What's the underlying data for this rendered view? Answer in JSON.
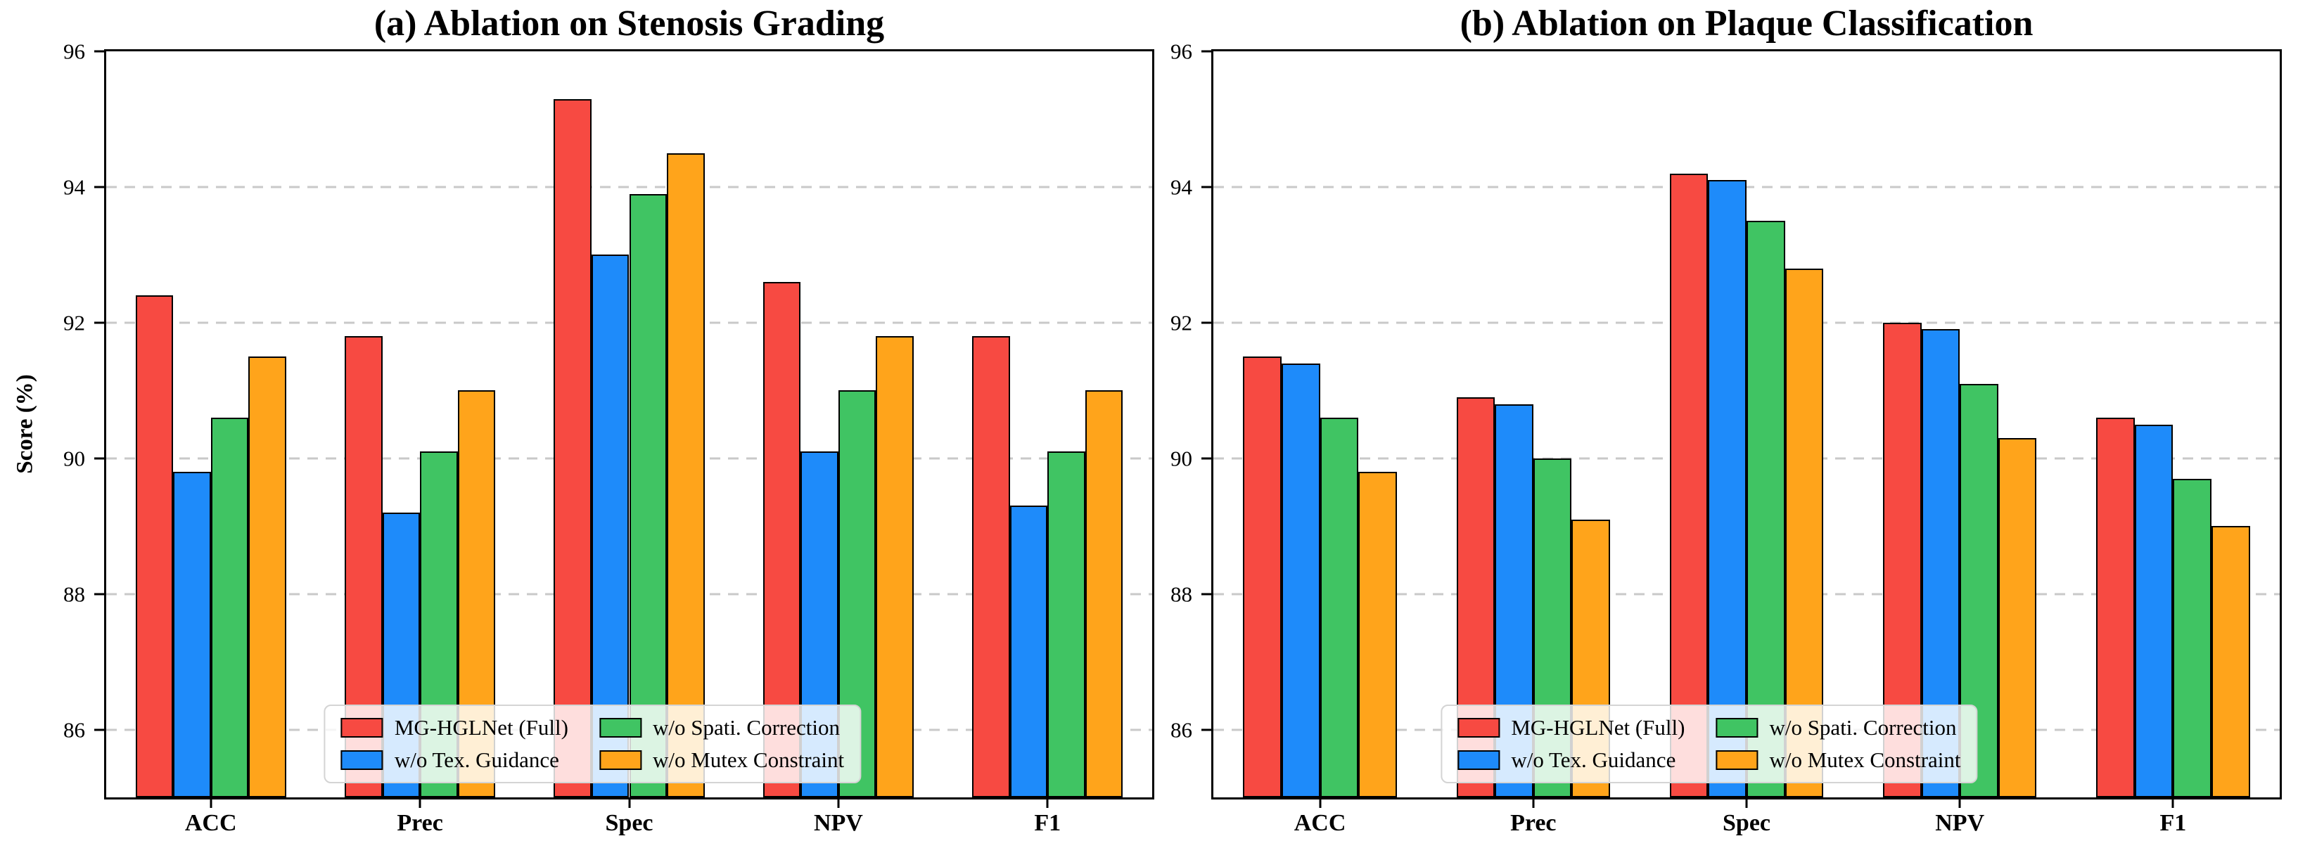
{
  "figure": {
    "background": "#ffffff",
    "y_axis_label": "Score (%)"
  },
  "palette": {
    "red": "#F74A42",
    "blue": "#1E8BFA",
    "green": "#40C463",
    "orange": "#FFA41B",
    "bar_edge": "#000000",
    "grid": "#C9C9C9",
    "axis": "#000000",
    "legend_bg": "rgba(255,255,255,0.82)",
    "legend_border": "#D4D4D4"
  },
  "chart_data": [
    {
      "type": "bar",
      "panel": "a",
      "title": "(a) Ablation on Stenosis Grading",
      "ylabel": "Score (%)",
      "xlabel": "",
      "categories": [
        "ACC",
        "Prec",
        "Spec",
        "NPV",
        "F1"
      ],
      "ylim": [
        85,
        96
      ],
      "yticks": [
        86,
        88,
        90,
        92,
        94,
        96
      ],
      "grid": "horizontal-dashed",
      "legend_position": "lower center",
      "legend_ncol": 2,
      "series": [
        {
          "name": "MG-HGLNet (Full)",
          "color": "#F74A42",
          "values": [
            92.4,
            91.8,
            95.3,
            92.6,
            91.8
          ]
        },
        {
          "name": "w/o Tex. Guidance",
          "color": "#1E8BFA",
          "values": [
            89.8,
            89.2,
            93.0,
            90.1,
            89.3
          ]
        },
        {
          "name": "w/o Spati. Correction",
          "color": "#40C463",
          "values": [
            90.6,
            90.1,
            93.9,
            91.0,
            90.1
          ]
        },
        {
          "name": "w/o Mutex Constraint",
          "color": "#FFA41B",
          "values": [
            91.5,
            91.0,
            94.5,
            91.8,
            91.0
          ]
        }
      ]
    },
    {
      "type": "bar",
      "panel": "b",
      "title": "(b) Ablation on Plaque Classification",
      "ylabel": "",
      "xlabel": "",
      "categories": [
        "ACC",
        "Prec",
        "Spec",
        "NPV",
        "F1"
      ],
      "ylim": [
        85,
        96
      ],
      "yticks": [
        86,
        88,
        90,
        92,
        94,
        96
      ],
      "grid": "horizontal-dashed",
      "legend_position": "lower center",
      "legend_ncol": 2,
      "series": [
        {
          "name": "MG-HGLNet (Full)",
          "color": "#F74A42",
          "values": [
            91.5,
            90.9,
            94.2,
            92.0,
            90.6
          ]
        },
        {
          "name": "w/o Tex. Guidance",
          "color": "#1E8BFA",
          "values": [
            91.4,
            90.8,
            94.1,
            91.9,
            90.5
          ]
        },
        {
          "name": "w/o Spati. Correction",
          "color": "#40C463",
          "values": [
            90.6,
            90.0,
            93.5,
            91.1,
            89.7
          ]
        },
        {
          "name": "w/o Mutex Constraint",
          "color": "#FFA41B",
          "values": [
            89.8,
            89.1,
            92.8,
            90.3,
            89.0
          ]
        }
      ]
    }
  ]
}
